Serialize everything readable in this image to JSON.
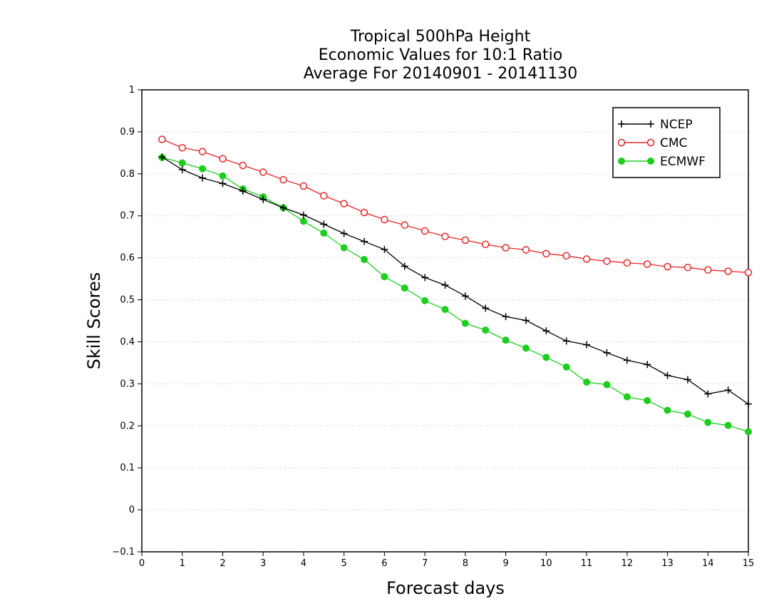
{
  "chart_data": {
    "type": "line",
    "title": [
      "Tropical 500hPa Height",
      "Economic Values for 10:1 Ratio",
      "Average For 20140901 - 20141130"
    ],
    "xlabel": "Forecast days",
    "ylabel": "Skill Scores",
    "xlim": [
      0,
      15
    ],
    "ylim": [
      -0.1,
      1
    ],
    "xticks": [
      0,
      1,
      2,
      3,
      4,
      5,
      6,
      7,
      8,
      9,
      10,
      11,
      12,
      13,
      14,
      15
    ],
    "yticks": [
      -0.1,
      0,
      0.1,
      0.2,
      0.3,
      0.4,
      0.5,
      0.6,
      0.7,
      0.8,
      0.9,
      1
    ],
    "grid": "horizontal dotted",
    "legend_position": "top-right",
    "x": [
      0.5,
      1,
      1.5,
      2,
      2.5,
      3,
      3.5,
      4,
      4.5,
      5,
      5.5,
      6,
      6.5,
      7,
      7.5,
      8,
      8.5,
      9,
      9.5,
      10,
      10.5,
      11,
      11.5,
      12,
      12.5,
      13,
      13.5,
      14,
      14.5,
      15
    ],
    "series": [
      {
        "name": "NCEP",
        "color": "#000000",
        "marker": "plus",
        "values": [
          0.84,
          0.81,
          0.79,
          0.777,
          0.759,
          0.739,
          0.719,
          0.702,
          0.68,
          0.658,
          0.639,
          0.62,
          0.58,
          0.553,
          0.535,
          0.509,
          0.48,
          0.46,
          0.451,
          0.426,
          0.402,
          0.393,
          0.374,
          0.356,
          0.346,
          0.32,
          0.31,
          0.276,
          0.285,
          0.252
        ]
      },
      {
        "name": "CMC",
        "color": "#e8262a",
        "marker": "open-circle",
        "values": [
          0.882,
          0.862,
          0.853,
          0.836,
          0.82,
          0.804,
          0.786,
          0.771,
          0.748,
          0.729,
          0.708,
          0.691,
          0.678,
          0.664,
          0.651,
          0.642,
          0.632,
          0.624,
          0.619,
          0.61,
          0.605,
          0.597,
          0.592,
          0.588,
          0.585,
          0.579,
          0.577,
          0.571,
          0.568,
          0.565
        ]
      },
      {
        "name": "ECMWF",
        "color": "#1ecd1e",
        "marker": "filled-circle",
        "values": [
          0.839,
          0.826,
          0.812,
          0.795,
          0.764,
          0.745,
          0.719,
          0.687,
          0.659,
          0.624,
          0.596,
          0.555,
          0.528,
          0.498,
          0.477,
          0.444,
          0.428,
          0.404,
          0.385,
          0.363,
          0.34,
          0.304,
          0.298,
          0.269,
          0.26,
          0.237,
          0.228,
          0.208,
          0.201,
          0.186
        ]
      }
    ]
  }
}
